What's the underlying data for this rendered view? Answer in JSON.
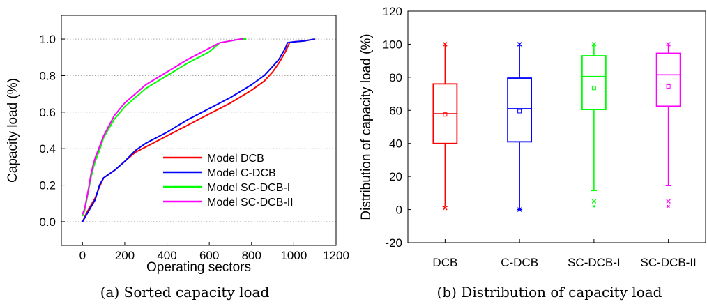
{
  "chart_data": [
    {
      "type": "line",
      "caption": "(a) Sorted capacity load",
      "xlabel": "Operating sectors",
      "ylabel": "Capacity load (%)",
      "xlim": [
        -100,
        1200
      ],
      "ylim": [
        -0.13,
        1.13
      ],
      "xticks": [
        "0",
        "200",
        "400",
        "600",
        "800",
        "1000",
        "1200"
      ],
      "yticks": [
        "0.0",
        "0.2",
        "0.4",
        "0.6",
        "0.8",
        "1.0"
      ],
      "grid": "horizontal dotted",
      "legend_position": "bottom-right",
      "series": [
        {
          "name": "Model DCB",
          "color": "#ff0000",
          "x": [
            0,
            20,
            40,
            60,
            80,
            100,
            150,
            200,
            250,
            300,
            350,
            400,
            500,
            600,
            700,
            800,
            860,
            900,
            930,
            960,
            980,
            1000,
            1050,
            1100
          ],
          "y": [
            0.0,
            0.05,
            0.09,
            0.13,
            0.19,
            0.24,
            0.28,
            0.33,
            0.38,
            0.41,
            0.44,
            0.47,
            0.53,
            0.59,
            0.65,
            0.72,
            0.77,
            0.82,
            0.87,
            0.93,
            0.98,
            0.985,
            0.99,
            1.0
          ]
        },
        {
          "name": "Model C-DCB",
          "color": "#0000ff",
          "x": [
            0,
            20,
            40,
            60,
            80,
            100,
            150,
            200,
            250,
            300,
            350,
            400,
            500,
            600,
            700,
            800,
            860,
            900,
            930,
            960,
            970,
            1000,
            1050,
            1100
          ],
          "y": [
            0.0,
            0.04,
            0.08,
            0.12,
            0.2,
            0.24,
            0.28,
            0.33,
            0.39,
            0.43,
            0.46,
            0.49,
            0.56,
            0.62,
            0.68,
            0.75,
            0.8,
            0.85,
            0.89,
            0.95,
            0.98,
            0.985,
            0.99,
            1.0
          ]
        },
        {
          "name": "Model SC-DCB-I",
          "color": "#00ff00",
          "x": [
            0,
            10,
            20,
            30,
            40,
            50,
            60,
            80,
            100,
            150,
            200,
            300,
            400,
            500,
            600,
            650,
            700,
            750,
            775
          ],
          "y": [
            0.03,
            0.06,
            0.12,
            0.18,
            0.24,
            0.29,
            0.33,
            0.39,
            0.46,
            0.56,
            0.63,
            0.73,
            0.8,
            0.87,
            0.93,
            0.98,
            0.99,
            1.0,
            1.0
          ]
        },
        {
          "name": "Model SC-DCB-II",
          "color": "#ff00ff",
          "x": [
            0,
            10,
            20,
            30,
            40,
            50,
            60,
            80,
            100,
            150,
            200,
            300,
            400,
            500,
            600,
            650,
            700,
            750,
            760
          ],
          "y": [
            0.04,
            0.07,
            0.13,
            0.19,
            0.26,
            0.31,
            0.35,
            0.41,
            0.47,
            0.58,
            0.65,
            0.75,
            0.82,
            0.89,
            0.95,
            0.98,
            0.99,
            1.0,
            1.0
          ]
        }
      ]
    },
    {
      "type": "box",
      "caption": "(b) Distribution of capacity load",
      "ylabel": "Distribution of capacity load (%)",
      "ylim": [
        -20,
        120
      ],
      "yticks": [
        "-20",
        "0",
        "20",
        "40",
        "60",
        "80",
        "100",
        "120"
      ],
      "grid": "none",
      "categories": [
        "DCB",
        "C-DCB",
        "SC-DCB-I",
        "SC-DCB-II"
      ],
      "boxes": [
        {
          "name": "DCB",
          "color": "#ff0000",
          "whisker_low": 2,
          "q1": 40,
          "median": 58,
          "q3": 76,
          "whisker_high": 100,
          "mean": 57.5,
          "outliers": [
            1,
            100
          ]
        },
        {
          "name": "C-DCB",
          "color": "#0000ff",
          "whisker_low": 0,
          "q1": 41,
          "median": 61,
          "q3": 79.5,
          "whisker_high": 100,
          "mean": 59.5,
          "outliers": [
            0,
            100
          ]
        },
        {
          "name": "SC-DCB-I",
          "color": "#00ff00",
          "whisker_low": 11.5,
          "q1": 60.5,
          "median": 80.5,
          "q3": 93,
          "whisker_high": 100,
          "mean": 73.5,
          "outliers": [
            5,
            2,
            100
          ]
        },
        {
          "name": "SC-DCB-II",
          "color": "#ff00ff",
          "whisker_low": 14.5,
          "q1": 62.5,
          "median": 81.5,
          "q3": 94.5,
          "whisker_high": 100,
          "mean": 74.5,
          "outliers": [
            5,
            2,
            100
          ]
        }
      ]
    }
  ]
}
